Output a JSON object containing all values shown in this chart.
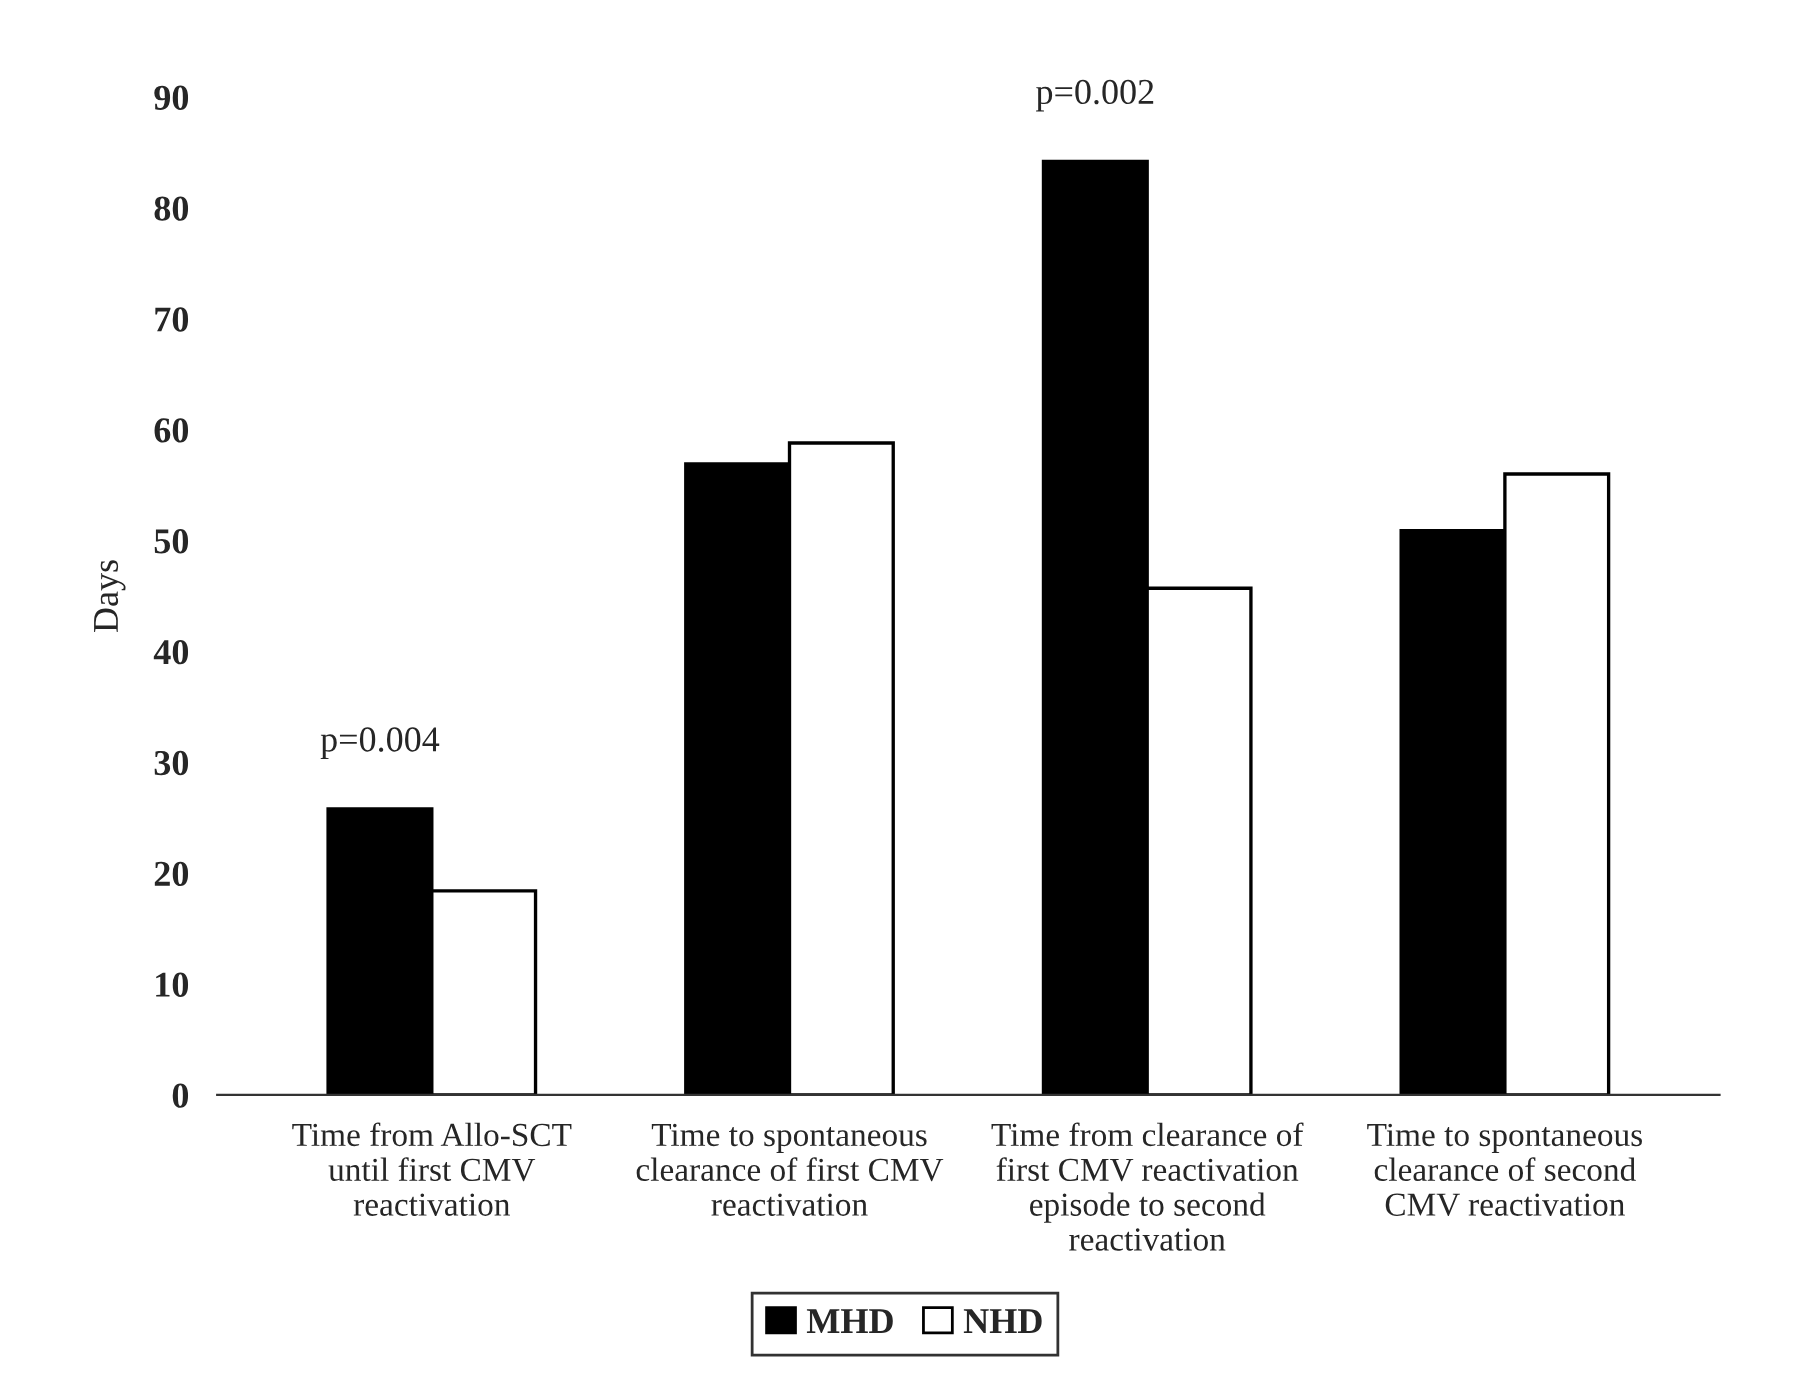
{
  "chart_data": {
    "type": "bar",
    "ylabel": "Days",
    "categories": [
      "Time from Allo-SCT\nuntil first CMV\nreactivation",
      "Time to spontaneous\nclearance of first CMV\nreactivation",
      "Time from clearance of\nfirst CMV reactivation\nepisode to second\nreactivation",
      "Time to spontaneous\nclearance of second\nCMV reactivation"
    ],
    "series": [
      {
        "name": "MHD",
        "color": "#000000",
        "values": [
          25.8,
          56.9,
          84.2,
          50.9
        ]
      },
      {
        "name": "NHD",
        "color": "#ffffff",
        "values": [
          18.4,
          58.8,
          45.7,
          56.0
        ]
      }
    ],
    "ylim": [
      0,
      90
    ],
    "yticks": [
      0,
      10,
      20,
      30,
      40,
      50,
      60,
      70,
      80,
      90
    ],
    "annotations": [
      "p=0.004",
      "p=0.002"
    ],
    "grid": false,
    "legend": "bottom"
  }
}
